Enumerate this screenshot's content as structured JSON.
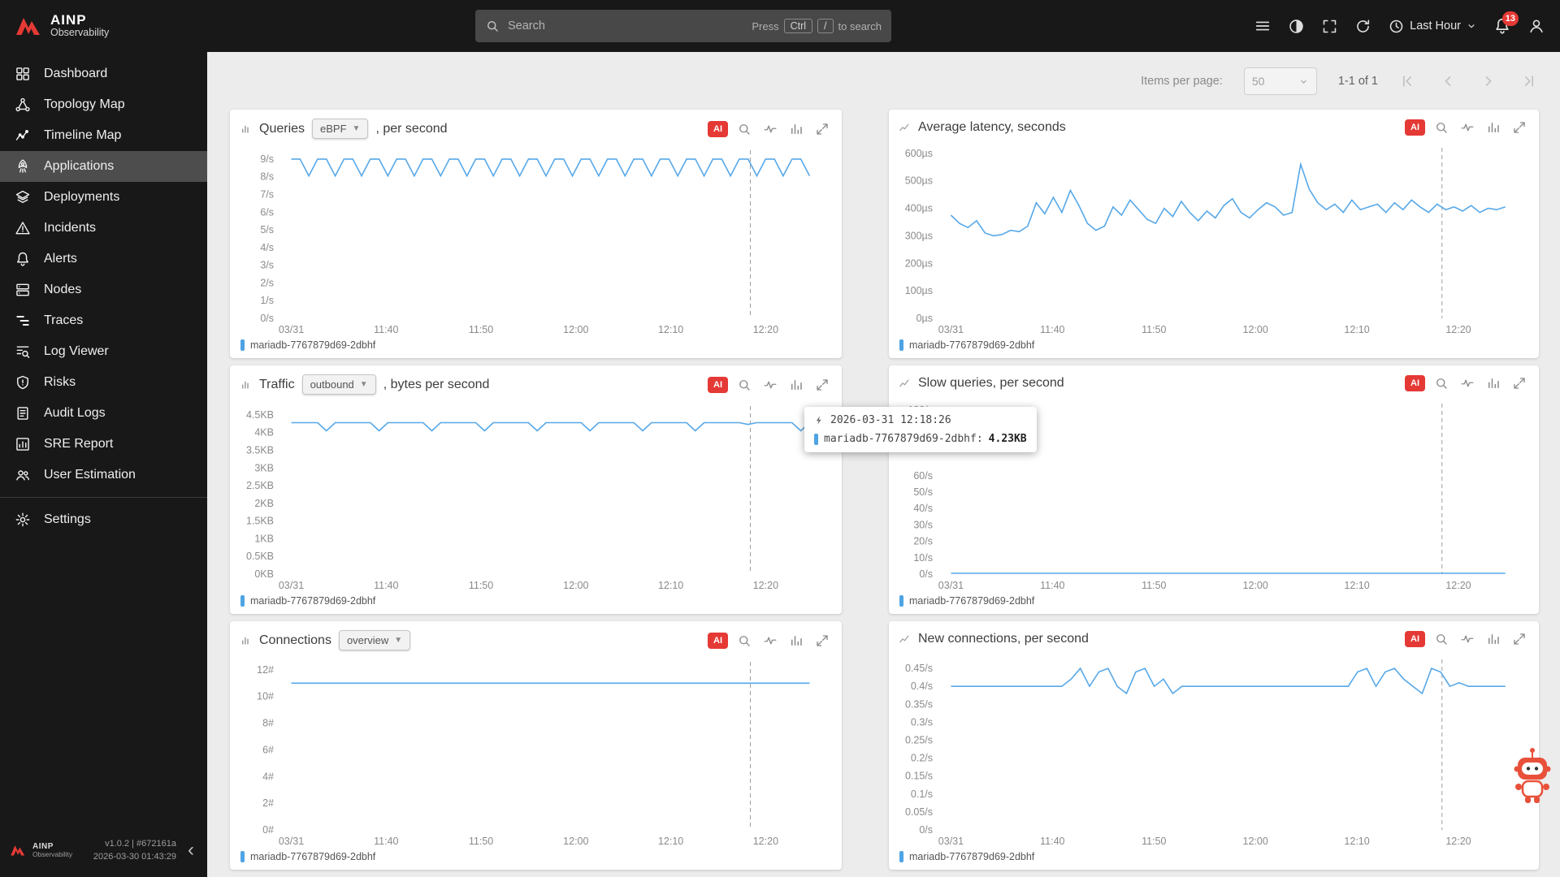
{
  "topbar": {
    "brand_line1": "AINP",
    "brand_line2": "Observability",
    "search": {
      "placeholder": "Search",
      "hint_prefix": "Press",
      "key_ctrl": "Ctrl",
      "key_slash": "/",
      "hint_suffix": "to search"
    },
    "time_range": "Last Hour",
    "notifications_count": "13"
  },
  "sidebar": {
    "items": [
      {
        "label": "Dashboard"
      },
      {
        "label": "Topology Map"
      },
      {
        "label": "Timeline Map"
      },
      {
        "label": "Applications"
      },
      {
        "label": "Deployments"
      },
      {
        "label": "Incidents"
      },
      {
        "label": "Alerts"
      },
      {
        "label": "Nodes"
      },
      {
        "label": "Traces"
      },
      {
        "label": "Log Viewer"
      },
      {
        "label": "Risks"
      },
      {
        "label": "Audit Logs"
      },
      {
        "label": "SRE Report"
      },
      {
        "label": "User Estimation"
      }
    ],
    "settings_label": "Settings",
    "footer": {
      "brand_line1": "AINP",
      "brand_line2": "Observability",
      "version": "v1.0.2 | #672161a",
      "date": "2026-03-30 01:43:29"
    }
  },
  "pager": {
    "items_per_page_label": "Items per page:",
    "page_size": "50",
    "range": "1-1 of 1"
  },
  "labels": {
    "ai": "AI"
  },
  "tooltip": {
    "time": "2026-03-31 12:18:26",
    "series": "mariadb-7767879d69-2dbhf:",
    "value": "4.23KB"
  },
  "panels": [
    {
      "title": "Queries",
      "selector": "eBPF",
      "suffix": ", per second",
      "legend": "mariadb-7767879d69-2dbhf",
      "chart_data": {
        "type": "line",
        "title": "Queries, per second",
        "grid": false,
        "legend_position": "bottom",
        "legend_entries": [
          "mariadb-7767879d69-2dbhf"
        ],
        "color": "#57a8e8",
        "ylim": [
          0,
          9.5
        ],
        "yticks": [
          {
            "v": 9,
            "l": "9/s"
          },
          {
            "v": 8,
            "l": "8/s"
          },
          {
            "v": 7,
            "l": "7/s"
          },
          {
            "v": 6,
            "l": "6/s"
          },
          {
            "v": 5,
            "l": "5/s"
          },
          {
            "v": 4,
            "l": "4/s"
          },
          {
            "v": 3,
            "l": "3/s"
          },
          {
            "v": 2,
            "l": "2/s"
          },
          {
            "v": 1,
            "l": "1/s"
          },
          {
            "v": 0,
            "l": "0/s"
          }
        ],
        "xticks": [
          {
            "p": 0.02,
            "l": "03/31"
          },
          {
            "p": 0.193,
            "l": "11:40"
          },
          {
            "p": 0.366,
            "l": "11:50"
          },
          {
            "p": 0.539,
            "l": "12:00"
          },
          {
            "p": 0.712,
            "l": "12:10"
          },
          {
            "p": 0.885,
            "l": "12:20"
          }
        ],
        "x_start": 0.02,
        "x_end": 0.965,
        "cursor": 0.857,
        "values": [
          9,
          9,
          8.05,
          9,
          9,
          8.05,
          9,
          9,
          8.05,
          9,
          9,
          8.05,
          9,
          9,
          8.05,
          9,
          9,
          8.05,
          9,
          9,
          8.05,
          9,
          9,
          8.05,
          9,
          9,
          8.05,
          9,
          9,
          8.05,
          9,
          9,
          8.05,
          9,
          9,
          8.05,
          9,
          9,
          8.05,
          9,
          9,
          8.05,
          9,
          9,
          8.05,
          9,
          9,
          8.05,
          9,
          9,
          8.05,
          9,
          9,
          8.05,
          9,
          9,
          8.05,
          9,
          9,
          8.05
        ]
      }
    },
    {
      "title": "Average latency, seconds",
      "legend": "mariadb-7767879d69-2dbhf",
      "chart_data": {
        "type": "line",
        "title": "Average latency, seconds",
        "grid": false,
        "legend_position": "bottom",
        "legend_entries": [
          "mariadb-7767879d69-2dbhf"
        ],
        "color": "#57a8e8",
        "ylim": [
          0,
          620
        ],
        "yticks": [
          {
            "v": 600,
            "l": "600µs"
          },
          {
            "v": 500,
            "l": "500µs"
          },
          {
            "v": 400,
            "l": "400µs"
          },
          {
            "v": 300,
            "l": "300µs"
          },
          {
            "v": 200,
            "l": "200µs"
          },
          {
            "v": 100,
            "l": "100µs"
          },
          {
            "v": 0,
            "l": "0µs"
          }
        ],
        "xticks": [
          {
            "p": 0.02,
            "l": "03/31"
          },
          {
            "p": 0.193,
            "l": "11:40"
          },
          {
            "p": 0.366,
            "l": "11:50"
          },
          {
            "p": 0.539,
            "l": "12:00"
          },
          {
            "p": 0.712,
            "l": "12:10"
          },
          {
            "p": 0.885,
            "l": "12:20"
          }
        ],
        "x_start": 0.02,
        "x_end": 0.965,
        "cursor": 0.857,
        "values": [
          375,
          345,
          330,
          355,
          310,
          300,
          305,
          320,
          315,
          335,
          420,
          380,
          440,
          385,
          465,
          410,
          345,
          320,
          335,
          405,
          375,
          430,
          395,
          360,
          345,
          400,
          370,
          425,
          385,
          355,
          390,
          365,
          410,
          435,
          385,
          365,
          395,
          420,
          405,
          375,
          385,
          560,
          470,
          420,
          395,
          415,
          385,
          430,
          395,
          405,
          415,
          385,
          420,
          395,
          430,
          405,
          385,
          415,
          395,
          405,
          390,
          410,
          385,
          400,
          395,
          405
        ]
      }
    },
    {
      "title": "Traffic",
      "selector": "outbound",
      "suffix": ", bytes per second",
      "legend": "mariadb-7767879d69-2dbhf",
      "chart_data": {
        "type": "line",
        "title": "Traffic outbound, bytes per second",
        "grid": false,
        "legend_position": "bottom",
        "legend_entries": [
          "mariadb-7767879d69-2dbhf"
        ],
        "color": "#57a8e8",
        "ylim": [
          0,
          4.75
        ],
        "yticks": [
          {
            "v": 4.5,
            "l": "4.5KB"
          },
          {
            "v": 4,
            "l": "4KB"
          },
          {
            "v": 3.5,
            "l": "3.5KB"
          },
          {
            "v": 3,
            "l": "3KB"
          },
          {
            "v": 2.5,
            "l": "2.5KB"
          },
          {
            "v": 2,
            "l": "2KB"
          },
          {
            "v": 1.5,
            "l": "1.5KB"
          },
          {
            "v": 1,
            "l": "1KB"
          },
          {
            "v": 0.5,
            "l": "0.5KB"
          },
          {
            "v": 0,
            "l": "0KB"
          }
        ],
        "xticks": [
          {
            "p": 0.02,
            "l": "03/31"
          },
          {
            "p": 0.193,
            "l": "11:40"
          },
          {
            "p": 0.366,
            "l": "11:50"
          },
          {
            "p": 0.539,
            "l": "12:00"
          },
          {
            "p": 0.712,
            "l": "12:10"
          },
          {
            "p": 0.885,
            "l": "12:20"
          }
        ],
        "x_start": 0.02,
        "x_end": 0.965,
        "cursor": 0.857,
        "values": [
          4.28,
          4.28,
          4.28,
          4.28,
          4.05,
          4.28,
          4.28,
          4.28,
          4.28,
          4.28,
          4.05,
          4.28,
          4.28,
          4.28,
          4.28,
          4.28,
          4.05,
          4.28,
          4.28,
          4.28,
          4.28,
          4.28,
          4.05,
          4.28,
          4.28,
          4.28,
          4.28,
          4.28,
          4.05,
          4.28,
          4.28,
          4.28,
          4.28,
          4.28,
          4.05,
          4.28,
          4.28,
          4.28,
          4.28,
          4.28,
          4.05,
          4.28,
          4.28,
          4.28,
          4.28,
          4.28,
          4.05,
          4.28,
          4.28,
          4.28,
          4.28,
          4.28,
          4.23,
          4.28,
          4.28,
          4.28,
          4.28,
          4.28,
          4.05,
          4.28
        ]
      }
    },
    {
      "title": "Slow queries, per second",
      "legend": "mariadb-7767879d69-2dbhf",
      "chart_data": {
        "type": "line",
        "title": "Slow queries, per second",
        "grid": false,
        "legend_position": "bottom",
        "legend_entries": [
          "mariadb-7767879d69-2dbhf"
        ],
        "color": "#57a8e8",
        "ylim": [
          0,
          104
        ],
        "yticks": [
          {
            "v": 100,
            "l": "100/s"
          },
          {
            "v": 60,
            "l": "60/s"
          },
          {
            "v": 50,
            "l": "50/s"
          },
          {
            "v": 40,
            "l": "40/s"
          },
          {
            "v": 30,
            "l": "30/s"
          },
          {
            "v": 20,
            "l": "20/s"
          },
          {
            "v": 10,
            "l": "10/s"
          },
          {
            "v": 0,
            "l": "0/s"
          }
        ],
        "xticks": [
          {
            "p": 0.02,
            "l": "03/31"
          },
          {
            "p": 0.193,
            "l": "11:40"
          },
          {
            "p": 0.366,
            "l": "11:50"
          },
          {
            "p": 0.539,
            "l": "12:00"
          },
          {
            "p": 0.712,
            "l": "12:10"
          },
          {
            "p": 0.885,
            "l": "12:20"
          }
        ],
        "x_start": 0.02,
        "x_end": 0.965,
        "cursor": 0.857,
        "values": [
          0.5,
          0.5
        ]
      }
    },
    {
      "title": "Connections",
      "selector": "overview",
      "suffix": "",
      "legend": "mariadb-7767879d69-2dbhf",
      "chart_data": {
        "type": "line",
        "title": "Connections overview",
        "grid": false,
        "legend_position": "bottom",
        "legend_entries": [
          "mariadb-7767879d69-2dbhf"
        ],
        "color": "#57a8e8",
        "ylim": [
          0,
          12.6
        ],
        "yticks": [
          {
            "v": 12,
            "l": "12#"
          },
          {
            "v": 10,
            "l": "10#"
          },
          {
            "v": 8,
            "l": "8#"
          },
          {
            "v": 6,
            "l": "6#"
          },
          {
            "v": 4,
            "l": "4#"
          },
          {
            "v": 2,
            "l": "2#"
          },
          {
            "v": 0,
            "l": "0#"
          }
        ],
        "xticks": [
          {
            "p": 0.02,
            "l": "03/31"
          },
          {
            "p": 0.193,
            "l": "11:40"
          },
          {
            "p": 0.366,
            "l": "11:50"
          },
          {
            "p": 0.539,
            "l": "12:00"
          },
          {
            "p": 0.712,
            "l": "12:10"
          },
          {
            "p": 0.885,
            "l": "12:20"
          }
        ],
        "x_start": 0.02,
        "x_end": 0.965,
        "cursor": 0.857,
        "values": [
          11,
          11
        ]
      }
    },
    {
      "title": "New connections, per second",
      "legend": "mariadb-7767879d69-2dbhf",
      "chart_data": {
        "type": "line",
        "title": "New connections, per second",
        "grid": false,
        "legend_position": "bottom",
        "legend_entries": [
          "mariadb-7767879d69-2dbhf"
        ],
        "color": "#57a8e8",
        "ylim": [
          0,
          0.475
        ],
        "yticks": [
          {
            "v": 0.45,
            "l": "0.45/s"
          },
          {
            "v": 0.4,
            "l": "0.4/s"
          },
          {
            "v": 0.35,
            "l": "0.35/s"
          },
          {
            "v": 0.3,
            "l": "0.3/s"
          },
          {
            "v": 0.25,
            "l": "0.25/s"
          },
          {
            "v": 0.2,
            "l": "0.2/s"
          },
          {
            "v": 0.15,
            "l": "0.15/s"
          },
          {
            "v": 0.1,
            "l": "0.1/s"
          },
          {
            "v": 0.05,
            "l": "0.05/s"
          },
          {
            "v": 0,
            "l": "0/s"
          }
        ],
        "xticks": [
          {
            "p": 0.02,
            "l": "03/31"
          },
          {
            "p": 0.193,
            "l": "11:40"
          },
          {
            "p": 0.366,
            "l": "11:50"
          },
          {
            "p": 0.539,
            "l": "12:00"
          },
          {
            "p": 0.712,
            "l": "12:10"
          },
          {
            "p": 0.885,
            "l": "12:20"
          }
        ],
        "x_start": 0.02,
        "x_end": 0.965,
        "cursor": 0.857,
        "values": [
          0.4,
          0.4,
          0.4,
          0.4,
          0.4,
          0.4,
          0.4,
          0.4,
          0.4,
          0.4,
          0.4,
          0.4,
          0.4,
          0.42,
          0.45,
          0.4,
          0.44,
          0.45,
          0.4,
          0.38,
          0.44,
          0.45,
          0.4,
          0.42,
          0.38,
          0.4,
          0.4,
          0.4,
          0.4,
          0.4,
          0.4,
          0.4,
          0.4,
          0.4,
          0.4,
          0.4,
          0.4,
          0.4,
          0.4,
          0.4,
          0.4,
          0.4,
          0.4,
          0.4,
          0.44,
          0.45,
          0.4,
          0.44,
          0.45,
          0.42,
          0.4,
          0.38,
          0.45,
          0.44,
          0.4,
          0.41,
          0.4,
          0.4,
          0.4,
          0.4,
          0.4
        ]
      }
    }
  ]
}
